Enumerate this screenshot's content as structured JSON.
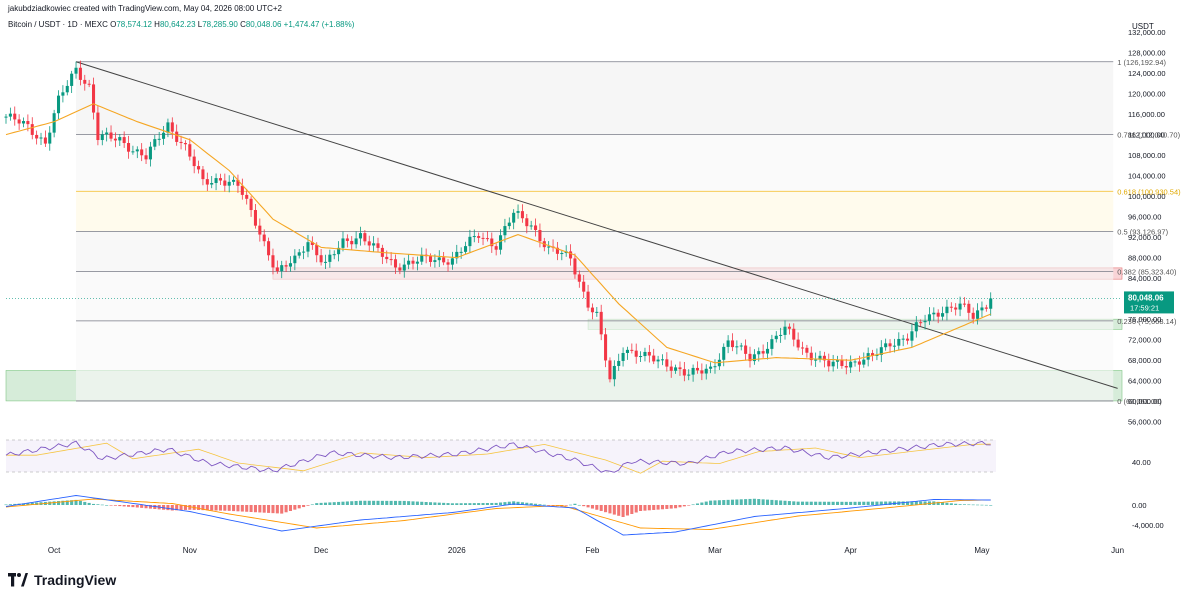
{
  "header": {
    "credit": "jakubdziadkowiec created with TradingView.com, May 04, 2026 08:00 UTC+2",
    "symbol": "Bitcoin / USDT · 1D · MEXC",
    "ohlc": {
      "o_label": "O",
      "o": "78,574.12",
      "h_label": "H",
      "h": "80,642.23",
      "l_label": "L",
      "l": "78,285.90",
      "c_label": "C",
      "c": "80,048.06",
      "change": "+1,474.47 (+1.88%)"
    }
  },
  "brand": {
    "wordmark": "TradingView",
    "logo": "tradingview-logo-icon"
  },
  "colors": {
    "up": "#089981",
    "down": "#f23645",
    "ma": "#f5a623",
    "trendline": "#444444",
    "fib_line": "#787b86",
    "fib_618": "#f5c542",
    "resistance_zone": "#f7c5c9",
    "support_zone": "#c8e6cc",
    "rsi_line": "#7e57c2",
    "macd_line": "#2962ff",
    "signal_line": "#ff9800"
  },
  "chart_data": {
    "type": "candlestick",
    "currency": "USDT",
    "price_axis": {
      "min": 54000,
      "max": 132000,
      "ticks": [
        "56,000.00",
        "60,000.00",
        "64,000.00",
        "68,000.00",
        "72,000.00",
        "76,000.00",
        "80,000.00",
        "84,000.00",
        "88,000.00",
        "92,000.00",
        "96,000.00",
        "100,000.00",
        "104,000.00",
        "108,000.00",
        "112,000.00",
        "116,000.00",
        "120,000.00",
        "124,000.00",
        "128,000.00",
        "132,000.00"
      ],
      "tick_values": [
        56000,
        60000,
        64000,
        68000,
        72000,
        76000,
        80000,
        84000,
        88000,
        92000,
        96000,
        100000,
        104000,
        108000,
        112000,
        116000,
        120000,
        124000,
        128000,
        132000
      ]
    },
    "time_axis": {
      "start": "2025-09-20",
      "end": "2026-06-02",
      "labels": [
        "Oct",
        "Nov",
        "Dec",
        "2026",
        "Feb",
        "Mar",
        "Apr",
        "May",
        "Jun"
      ],
      "label_dates": [
        "2025-10-01",
        "2025-11-01",
        "2025-12-01",
        "2026-01-01",
        "2026-02-01",
        "2026-03-01",
        "2026-04-01",
        "2026-05-01",
        "2026-06-01"
      ]
    },
    "last_price": {
      "value": 80048.06,
      "label": "80,048.06",
      "countdown": "17:59:21"
    },
    "fibonacci": [
      {
        "ratio": "1",
        "value": 126192.94,
        "label": "1 (126,192.94)"
      },
      {
        "ratio": "0.786",
        "value": 112040.7,
        "label": "0.786 (112,040.70)"
      },
      {
        "ratio": "0.618",
        "value": 100930.54,
        "label": "0.618 (100,930.54)"
      },
      {
        "ratio": "0.5",
        "value": 93126.97,
        "label": "0.5 (93,126.97)"
      },
      {
        "ratio": "0.382",
        "value": 85323.4,
        "label": "0.382 (85,323.40)"
      },
      {
        "ratio": "0.236",
        "value": 75668.14,
        "label": "0.236 (75,668.14)"
      },
      {
        "ratio": "0",
        "value": 60061.0,
        "label": "0 (60,061.00)"
      }
    ],
    "zones": [
      {
        "kind": "resistance",
        "start": "2025-11-20",
        "end": "2026-06-02",
        "low": 83800,
        "high": 86000
      },
      {
        "kind": "support",
        "start": "2026-01-31",
        "end": "2026-06-02",
        "low": 74000,
        "high": 76000
      },
      {
        "kind": "support",
        "start": "2025-09-20",
        "end": "2026-06-02",
        "low": 60061,
        "high": 66000
      }
    ],
    "trendline": {
      "from": {
        "date": "2025-10-06",
        "value": 126192.94
      },
      "to": {
        "date": "2026-06-01",
        "value": 62500
      }
    },
    "price_waypoints": [
      [
        "2025-09-20",
        115500
      ],
      [
        "2025-09-25",
        113500
      ],
      [
        "2025-09-29",
        110500
      ],
      [
        "2025-10-02",
        118500
      ],
      [
        "2025-10-06",
        124800
      ],
      [
        "2025-10-09",
        121500
      ],
      [
        "2025-10-11",
        111500
      ],
      [
        "2025-10-16",
        111000
      ],
      [
        "2025-10-22",
        107500
      ],
      [
        "2025-10-27",
        114000
      ],
      [
        "2025-10-31",
        109500
      ],
      [
        "2025-11-04",
        102500
      ],
      [
        "2025-11-08",
        103500
      ],
      [
        "2025-11-12",
        102000
      ],
      [
        "2025-11-16",
        95000
      ],
      [
        "2025-11-21",
        85000
      ],
      [
        "2025-11-25",
        87500
      ],
      [
        "2025-11-28",
        91500
      ],
      [
        "2025-12-02",
        86500
      ],
      [
        "2025-12-06",
        91000
      ],
      [
        "2025-12-10",
        92500
      ],
      [
        "2025-12-14",
        89000
      ],
      [
        "2025-12-18",
        86500
      ],
      [
        "2025-12-24",
        87500
      ],
      [
        "2025-12-31",
        87800
      ],
      [
        "2026-01-06",
        92500
      ],
      [
        "2026-01-10",
        90500
      ],
      [
        "2026-01-14",
        96500
      ],
      [
        "2026-01-18",
        94500
      ],
      [
        "2026-01-22",
        89500
      ],
      [
        "2026-01-27",
        88000
      ],
      [
        "2026-01-31",
        79000
      ],
      [
        "2026-02-02",
        76500
      ],
      [
        "2026-02-05",
        64000
      ],
      [
        "2026-02-08",
        70500
      ],
      [
        "2026-02-13",
        68500
      ],
      [
        "2026-02-18",
        67500
      ],
      [
        "2026-02-23",
        65000
      ],
      [
        "2026-02-28",
        66500
      ],
      [
        "2026-03-04",
        71500
      ],
      [
        "2026-03-09",
        68500
      ],
      [
        "2026-03-14",
        71500
      ],
      [
        "2026-03-17",
        74000
      ],
      [
        "2026-03-22",
        69500
      ],
      [
        "2026-03-27",
        67000
      ],
      [
        "2026-03-31",
        67500
      ],
      [
        "2026-04-06",
        68500
      ],
      [
        "2026-04-10",
        71500
      ],
      [
        "2026-04-14",
        72500
      ],
      [
        "2026-04-18",
        76000
      ],
      [
        "2026-04-22",
        78000
      ],
      [
        "2026-04-26",
        78500
      ],
      [
        "2026-04-29",
        76500
      ],
      [
        "2026-05-03",
        80048
      ]
    ],
    "ma_waypoints": [
      [
        "2025-09-20",
        112000
      ],
      [
        "2025-10-01",
        114500
      ],
      [
        "2025-10-10",
        118000
      ],
      [
        "2025-10-20",
        114500
      ],
      [
        "2025-11-01",
        111000
      ],
      [
        "2025-11-10",
        105000
      ],
      [
        "2025-11-20",
        95500
      ],
      [
        "2025-12-01",
        90000
      ],
      [
        "2025-12-15",
        89000
      ],
      [
        "2026-01-01",
        88000
      ],
      [
        "2026-01-15",
        92500
      ],
      [
        "2026-01-28",
        88500
      ],
      [
        "2026-02-07",
        79000
      ],
      [
        "2026-02-18",
        70500
      ],
      [
        "2026-03-01",
        67500
      ],
      [
        "2026-03-15",
        68500
      ],
      [
        "2026-04-01",
        68000
      ],
      [
        "2026-04-15",
        70500
      ],
      [
        "2026-05-03",
        77000
      ]
    ],
    "rsi": {
      "tick": "40.00",
      "waypoints": [
        [
          "2025-09-20",
          48
        ],
        [
          "2025-10-06",
          68
        ],
        [
          "2025-10-12",
          42
        ],
        [
          "2025-10-27",
          58
        ],
        [
          "2025-11-05",
          35
        ],
        [
          "2025-11-20",
          22
        ],
        [
          "2025-12-03",
          52
        ],
        [
          "2025-12-18",
          44
        ],
        [
          "2026-01-01",
          50
        ],
        [
          "2026-01-14",
          66
        ],
        [
          "2026-01-28",
          40
        ],
        [
          "2026-02-05",
          18
        ],
        [
          "2026-02-10",
          38
        ],
        [
          "2026-02-23",
          34
        ],
        [
          "2026-03-04",
          54
        ],
        [
          "2026-03-17",
          60
        ],
        [
          "2026-03-27",
          44
        ],
        [
          "2026-04-10",
          56
        ],
        [
          "2026-04-22",
          66
        ],
        [
          "2026-05-03",
          68
        ]
      ]
    },
    "macd": {
      "ticks": [
        "0.00",
        "-4,000.00"
      ],
      "tick_values": [
        0,
        -4000
      ],
      "macd_waypoints": [
        [
          "2025-09-20",
          -300
        ],
        [
          "2025-10-06",
          1900
        ],
        [
          "2025-10-20",
          200
        ],
        [
          "2025-11-01",
          -1300
        ],
        [
          "2025-11-22",
          -5200
        ],
        [
          "2025-12-10",
          -3000
        ],
        [
          "2025-12-31",
          -1500
        ],
        [
          "2026-01-14",
          200
        ],
        [
          "2026-01-28",
          -600
        ],
        [
          "2026-02-08",
          -6000
        ],
        [
          "2026-02-20",
          -5400
        ],
        [
          "2026-03-10",
          -2300
        ],
        [
          "2026-04-01",
          -600
        ],
        [
          "2026-04-20",
          1100
        ],
        [
          "2026-05-03",
          1000
        ]
      ],
      "signal_waypoints": [
        [
          "2025-09-20",
          -400
        ],
        [
          "2025-10-10",
          1200
        ],
        [
          "2025-10-28",
          300
        ],
        [
          "2025-11-10",
          -1800
        ],
        [
          "2025-11-30",
          -4600
        ],
        [
          "2025-12-20",
          -3100
        ],
        [
          "2026-01-10",
          -700
        ],
        [
          "2026-01-25",
          -100
        ],
        [
          "2026-02-12",
          -4600
        ],
        [
          "2026-02-28",
          -4900
        ],
        [
          "2026-03-20",
          -2200
        ],
        [
          "2026-04-10",
          -500
        ],
        [
          "2026-04-26",
          900
        ],
        [
          "2026-05-03",
          1000
        ]
      ]
    }
  }
}
